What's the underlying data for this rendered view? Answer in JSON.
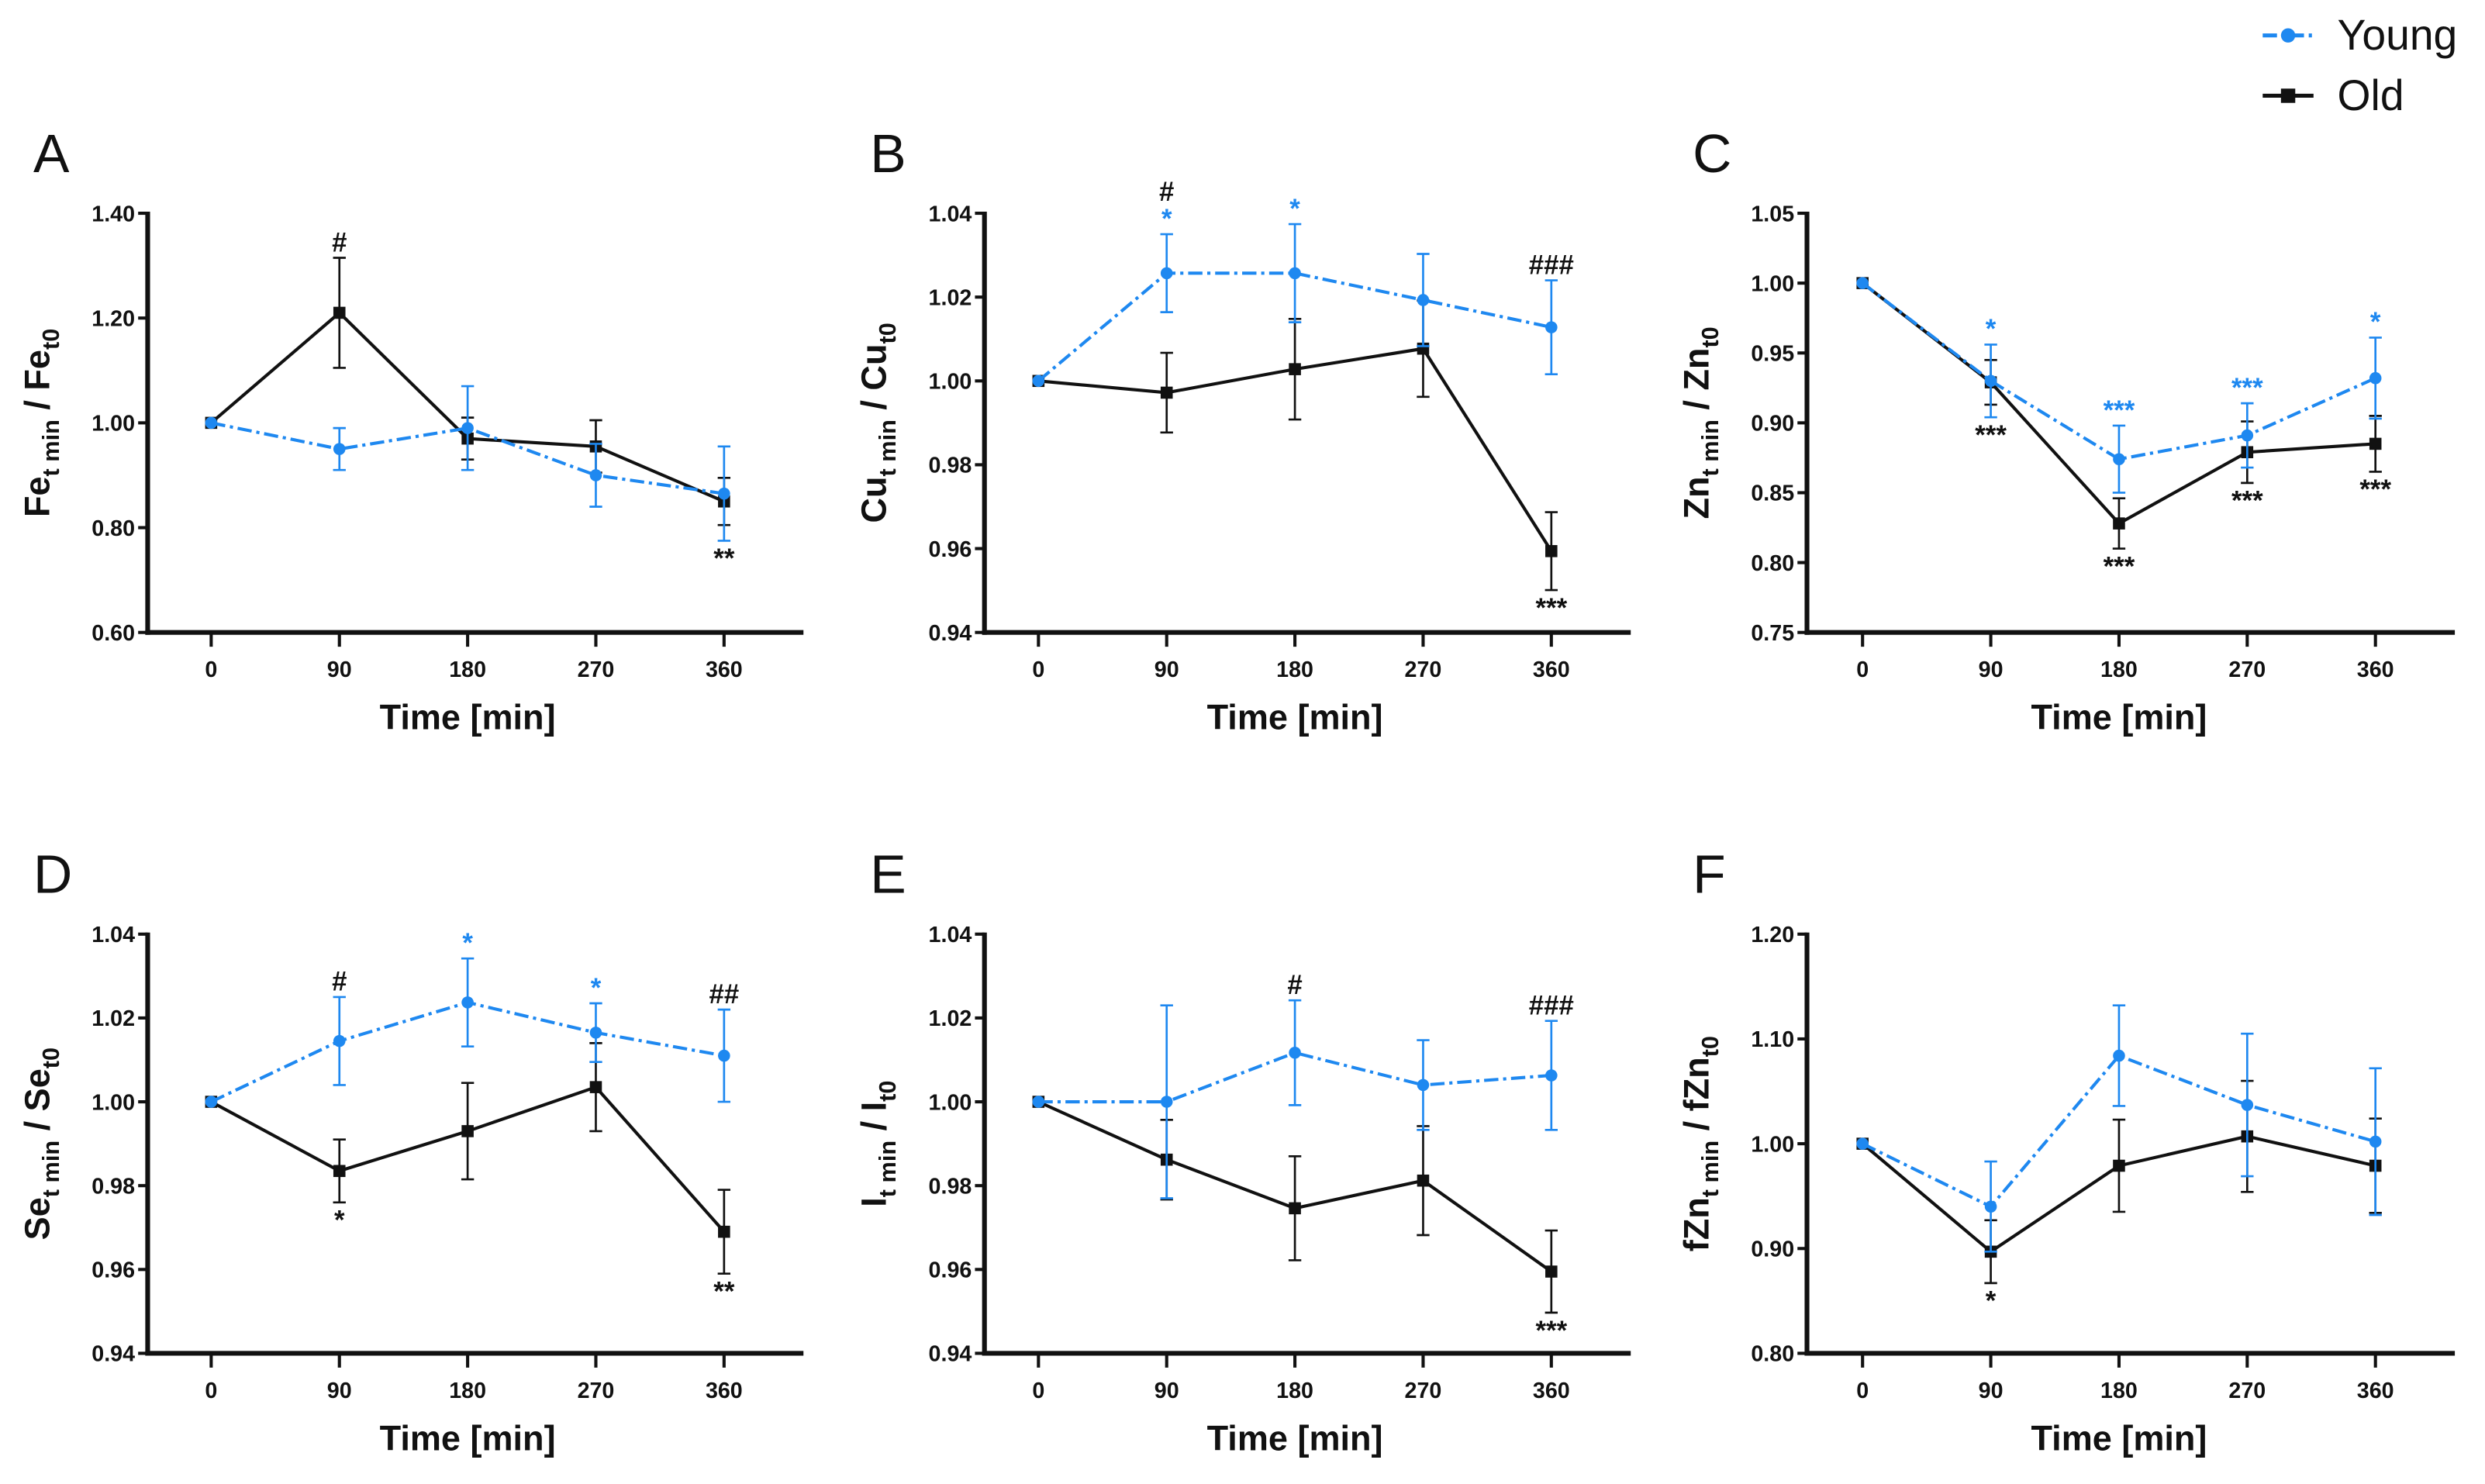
{
  "colors": {
    "young": "#1E88F0",
    "old": "#111111"
  },
  "legend": [
    {
      "key": "young",
      "label": "Young",
      "marker": "circle",
      "dash": true
    },
    {
      "key": "old",
      "label": "Old",
      "marker": "square",
      "dash": false
    }
  ],
  "chart_data": [
    {
      "panel": "A",
      "type": "line",
      "xlabel": "Time [min]",
      "ylabel": {
        "main": "Fe",
        "sub": "t min",
        "main2": " / Fe",
        "sub2": "t0"
      },
      "x": [
        0,
        90,
        180,
        270,
        360
      ],
      "ylim": [
        0.6,
        1.4
      ],
      "yticks": [
        0.6,
        0.8,
        1.0,
        1.2,
        1.4
      ],
      "ytick_labels": [
        "0.60",
        "0.80",
        "1.00",
        "1.20",
        "1.40"
      ],
      "series": [
        {
          "name": "Young",
          "values": [
            1.0,
            0.95,
            0.99,
            0.9,
            0.865
          ],
          "errors": [
            0,
            0.04,
            0.08,
            0.06,
            0.09
          ]
        },
        {
          "name": "Old",
          "values": [
            1.0,
            1.21,
            0.97,
            0.955,
            0.85
          ],
          "errors": [
            0,
            0.105,
            0.04,
            0.05,
            0.045
          ]
        }
      ],
      "annotations": [
        {
          "x": 90,
          "text": "#",
          "color": "old",
          "ref": "Old",
          "pos": "above",
          "stack": 0
        },
        {
          "x": 360,
          "text": "**",
          "color": "old",
          "ref": "Young",
          "pos": "below",
          "stack": 0
        }
      ]
    },
    {
      "panel": "B",
      "type": "line",
      "xlabel": "Time [min]",
      "ylabel": {
        "main": "Cu",
        "sub": "t min",
        "main2": " / Cu",
        "sub2": "t0"
      },
      "x": [
        0,
        90,
        180,
        270,
        360
      ],
      "ylim": [
        0.94,
        1.04
      ],
      "yticks": [
        0.94,
        0.96,
        0.98,
        1.0,
        1.02,
        1.04
      ],
      "ytick_labels": [
        "0.94",
        "0.96",
        "0.98",
        "1.00",
        "1.02",
        "1.04"
      ],
      "series": [
        {
          "name": "Young",
          "values": [
            1.0,
            1.0257,
            1.0257,
            1.0193,
            1.0128
          ],
          "errors": [
            0,
            0.0093,
            0.0117,
            0.011,
            0.0112
          ]
        },
        {
          "name": "Old",
          "values": [
            1.0,
            0.9972,
            1.0028,
            1.0077,
            0.9594
          ],
          "errors": [
            0,
            0.0095,
            0.012,
            0.0115,
            0.0093
          ]
        }
      ],
      "annotations": [
        {
          "x": 90,
          "text": "*",
          "color": "young",
          "ref": "Young",
          "pos": "above",
          "stack": 0
        },
        {
          "x": 90,
          "text": "#",
          "color": "old",
          "ref": "Young",
          "pos": "above",
          "stack": 1
        },
        {
          "x": 180,
          "text": "*",
          "color": "young",
          "ref": "Young",
          "pos": "above",
          "stack": 0
        },
        {
          "x": 360,
          "text": "###",
          "color": "old",
          "ref": "Young",
          "pos": "above",
          "stack": 0
        },
        {
          "x": 360,
          "text": "***",
          "color": "old",
          "ref": "Old",
          "pos": "below",
          "stack": 0
        }
      ]
    },
    {
      "panel": "C",
      "type": "line",
      "xlabel": "Time [min]",
      "ylabel": {
        "main": "Zn",
        "sub": "t min",
        "main2": " / Zn",
        "sub2": "t0"
      },
      "x": [
        0,
        90,
        180,
        270,
        360
      ],
      "ylim": [
        0.75,
        1.05
      ],
      "yticks": [
        0.75,
        0.8,
        0.85,
        0.9,
        0.95,
        1.0,
        1.05
      ],
      "ytick_labels": [
        "0.75",
        "0.80",
        "0.85",
        "0.90",
        "0.95",
        "1.00",
        "1.05"
      ],
      "series": [
        {
          "name": "Young",
          "values": [
            1.0,
            0.93,
            0.874,
            0.891,
            0.932
          ],
          "errors": [
            0,
            0.026,
            0.024,
            0.023,
            0.029
          ]
        },
        {
          "name": "Old",
          "values": [
            1.0,
            0.929,
            0.828,
            0.879,
            0.885
          ],
          "errors": [
            0,
            0.016,
            0.018,
            0.022,
            0.02
          ]
        }
      ],
      "annotations": [
        {
          "x": 90,
          "text": "*",
          "color": "young",
          "ref": "Young",
          "pos": "above",
          "stack": 0
        },
        {
          "x": 180,
          "text": "***",
          "color": "young",
          "ref": "Young",
          "pos": "above",
          "stack": 0
        },
        {
          "x": 270,
          "text": "***",
          "color": "young",
          "ref": "Young",
          "pos": "above",
          "stack": 0
        },
        {
          "x": 360,
          "text": "*",
          "color": "young",
          "ref": "Young",
          "pos": "above",
          "stack": 0
        },
        {
          "x": 90,
          "text": "***",
          "color": "old",
          "ref": "Young",
          "pos": "below",
          "stack": 0
        },
        {
          "x": 180,
          "text": "***",
          "color": "old",
          "ref": "Old",
          "pos": "below",
          "stack": 0
        },
        {
          "x": 270,
          "text": "***",
          "color": "old",
          "ref": "Old",
          "pos": "below",
          "stack": 0
        },
        {
          "x": 360,
          "text": "***",
          "color": "old",
          "ref": "Old",
          "pos": "below",
          "stack": 0
        }
      ]
    },
    {
      "panel": "D",
      "type": "line",
      "xlabel": "Time [min]",
      "ylabel": {
        "main": "Se",
        "sub": "t min",
        "main2": " / Se",
        "sub2": "t0"
      },
      "x": [
        0,
        90,
        180,
        270,
        360
      ],
      "ylim": [
        0.94,
        1.04
      ],
      "yticks": [
        0.94,
        0.96,
        0.98,
        1.0,
        1.02,
        1.04
      ],
      "ytick_labels": [
        "0.94",
        "0.96",
        "0.98",
        "1.00",
        "1.02",
        "1.04"
      ],
      "series": [
        {
          "name": "Young",
          "values": [
            1.0,
            1.0145,
            1.0237,
            1.0165,
            1.011
          ],
          "errors": [
            0,
            0.0105,
            0.0105,
            0.007,
            0.011
          ]
        },
        {
          "name": "Old",
          "values": [
            1.0,
            0.9835,
            0.993,
            1.0035,
            0.969
          ],
          "errors": [
            0,
            0.0075,
            0.0115,
            0.0105,
            0.01
          ]
        }
      ],
      "annotations": [
        {
          "x": 90,
          "text": "#",
          "color": "old",
          "ref": "Young",
          "pos": "above",
          "stack": 0
        },
        {
          "x": 180,
          "text": "*",
          "color": "young",
          "ref": "Young",
          "pos": "above",
          "stack": 0
        },
        {
          "x": 270,
          "text": "*",
          "color": "young",
          "ref": "Young",
          "pos": "above",
          "stack": 0
        },
        {
          "x": 360,
          "text": "##",
          "color": "old",
          "ref": "Young",
          "pos": "above",
          "stack": 0
        },
        {
          "x": 90,
          "text": "*",
          "color": "old",
          "ref": "Old",
          "pos": "below",
          "stack": 0
        },
        {
          "x": 360,
          "text": "**",
          "color": "old",
          "ref": "Old",
          "pos": "below",
          "stack": 0
        }
      ]
    },
    {
      "panel": "E",
      "type": "line",
      "xlabel": "Time [min]",
      "ylabel": {
        "main": "I",
        "sub": "t min",
        "main2": " / I",
        "sub2": "t0"
      },
      "x": [
        0,
        90,
        180,
        270,
        360
      ],
      "ylim": [
        0.94,
        1.04
      ],
      "yticks": [
        0.94,
        0.96,
        0.98,
        1.0,
        1.02,
        1.04
      ],
      "ytick_labels": [
        "0.94",
        "0.96",
        "0.98",
        "1.00",
        "1.02",
        "1.04"
      ],
      "series": [
        {
          "name": "Young",
          "values": [
            1.0,
            1.0,
            1.0117,
            1.004,
            1.0063
          ],
          "errors": [
            0,
            0.023,
            0.0125,
            0.0107,
            0.013
          ]
        },
        {
          "name": "Old",
          "values": [
            1.0,
            0.9862,
            0.9746,
            0.9812,
            0.9595
          ],
          "errors": [
            0,
            0.0095,
            0.0124,
            0.013,
            0.0098
          ]
        }
      ],
      "annotations": [
        {
          "x": 180,
          "text": "#",
          "color": "old",
          "ref": "Young",
          "pos": "above",
          "stack": 0
        },
        {
          "x": 360,
          "text": "###",
          "color": "old",
          "ref": "Young",
          "pos": "above",
          "stack": 0
        },
        {
          "x": 360,
          "text": "***",
          "color": "old",
          "ref": "Old",
          "pos": "below",
          "stack": 0
        }
      ]
    },
    {
      "panel": "F",
      "type": "line",
      "xlabel": "Time [min]",
      "ylabel": {
        "main": "fZn",
        "sub": "t min",
        "main2": " / fZn",
        "sub2": "t0"
      },
      "x": [
        0,
        90,
        180,
        270,
        360
      ],
      "ylim": [
        0.8,
        1.2
      ],
      "yticks": [
        0.8,
        0.9,
        1.0,
        1.1,
        1.2
      ],
      "ytick_labels": [
        "0.80",
        "0.90",
        "1.00",
        "1.10",
        "1.20"
      ],
      "series": [
        {
          "name": "Young",
          "values": [
            1.0,
            0.94,
            1.084,
            1.037,
            1.002
          ],
          "errors": [
            0,
            0.043,
            0.048,
            0.068,
            0.07
          ]
        },
        {
          "name": "Old",
          "values": [
            1.0,
            0.897,
            0.979,
            1.007,
            0.979
          ],
          "errors": [
            0,
            0.03,
            0.044,
            0.053,
            0.045
          ]
        }
      ],
      "annotations": [
        {
          "x": 90,
          "text": "*",
          "color": "old",
          "ref": "Old",
          "pos": "below",
          "stack": 0
        }
      ]
    }
  ]
}
